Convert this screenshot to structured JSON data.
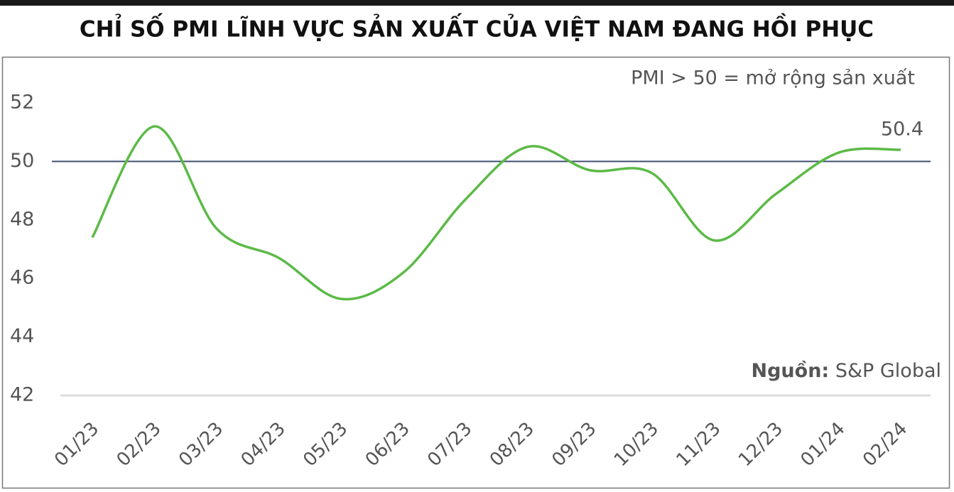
{
  "chart_data": {
    "type": "line",
    "title": "CHỈ SỐ PMI LĨNH VỰC SẢN XUẤT CỦA VIỆT NAM ĐANG HỒI PHỤC",
    "annotation": "PMI > 50 = mở rộng sản xuất",
    "source_label": "Nguồn:",
    "source": "S&P Global",
    "categories": [
      "01/23",
      "02/23",
      "03/23",
      "04/23",
      "05/23",
      "06/23",
      "07/23",
      "08/23",
      "09/23",
      "10/23",
      "11/23",
      "12/23",
      "01/24",
      "02/24"
    ],
    "series": [
      {
        "name": "PMI",
        "color": "#5cba47",
        "values": [
          47.4,
          51.2,
          47.7,
          46.7,
          45.3,
          46.2,
          48.7,
          50.5,
          49.7,
          49.6,
          47.3,
          48.9,
          50.3,
          50.4
        ]
      }
    ],
    "reference_line": {
      "value": 50,
      "color": "#3f5170"
    },
    "ylim": [
      42,
      52
    ],
    "yticks": [
      42,
      44,
      46,
      48,
      50,
      52
    ],
    "grid": false
  }
}
